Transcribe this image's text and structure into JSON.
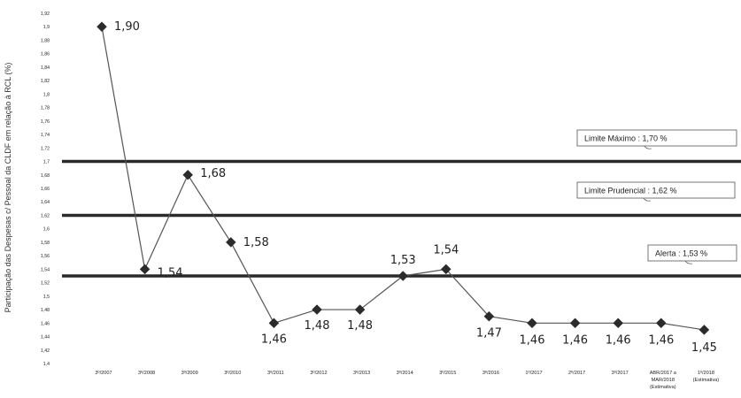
{
  "chart_data": {
    "type": "line",
    "ylabel": "Participação das Despesas c/ Pessoal da CLDF em relação à RCL (%)",
    "ylim": [
      1.4,
      1.92
    ],
    "yticks": [
      "1,4",
      "1,42",
      "1,44",
      "1,46",
      "1,48",
      "1,5",
      "1,52",
      "1,54",
      "1,56",
      "1,58",
      "1,6",
      "1,62",
      "1,64",
      "1,66",
      "1,68",
      "1,7",
      "1,72",
      "1,74",
      "1,76",
      "1,78",
      "1,8",
      "1,82",
      "1,84",
      "1,86",
      "1,88",
      "1,9",
      "1,92"
    ],
    "categories": [
      [
        "3º/2007"
      ],
      [
        "3º/2008"
      ],
      [
        "3º/2009"
      ],
      [
        "3º/2010"
      ],
      [
        "3º/2011"
      ],
      [
        "3º/2012"
      ],
      [
        "3º/2013"
      ],
      [
        "3º/2014"
      ],
      [
        "3º/2015"
      ],
      [
        "3º/2016"
      ],
      [
        "1º/2017"
      ],
      [
        "2º/2017"
      ],
      [
        "3º/2017"
      ],
      [
        "ABR/2017 a",
        "MAR/2018",
        "(Estimativa)"
      ],
      [
        "1º/2018",
        "(Estimativa)"
      ]
    ],
    "values": [
      1.9,
      1.54,
      1.68,
      1.58,
      1.46,
      1.48,
      1.48,
      1.53,
      1.54,
      1.47,
      1.46,
      1.46,
      1.46,
      1.46,
      1.45
    ],
    "value_labels": [
      "1,90",
      "1,54",
      "1,68",
      "1,58",
      "1,46",
      "1,48",
      "1,48",
      "1,53",
      "1,54",
      "1,47",
      "1,46",
      "1,46",
      "1,46",
      "1,46",
      "1,45"
    ],
    "reference_lines": [
      {
        "value": 1.7,
        "label": "Limite Máximo : 1,70 %"
      },
      {
        "value": 1.62,
        "label": "Limite Prudencial : 1,62 %"
      },
      {
        "value": 1.53,
        "label": "Alerta : 1,53 %"
      }
    ],
    "colors": {
      "line": "#555555",
      "marker": "#2b2b2b",
      "reference": "#2a2a2a"
    },
    "grid": false
  }
}
